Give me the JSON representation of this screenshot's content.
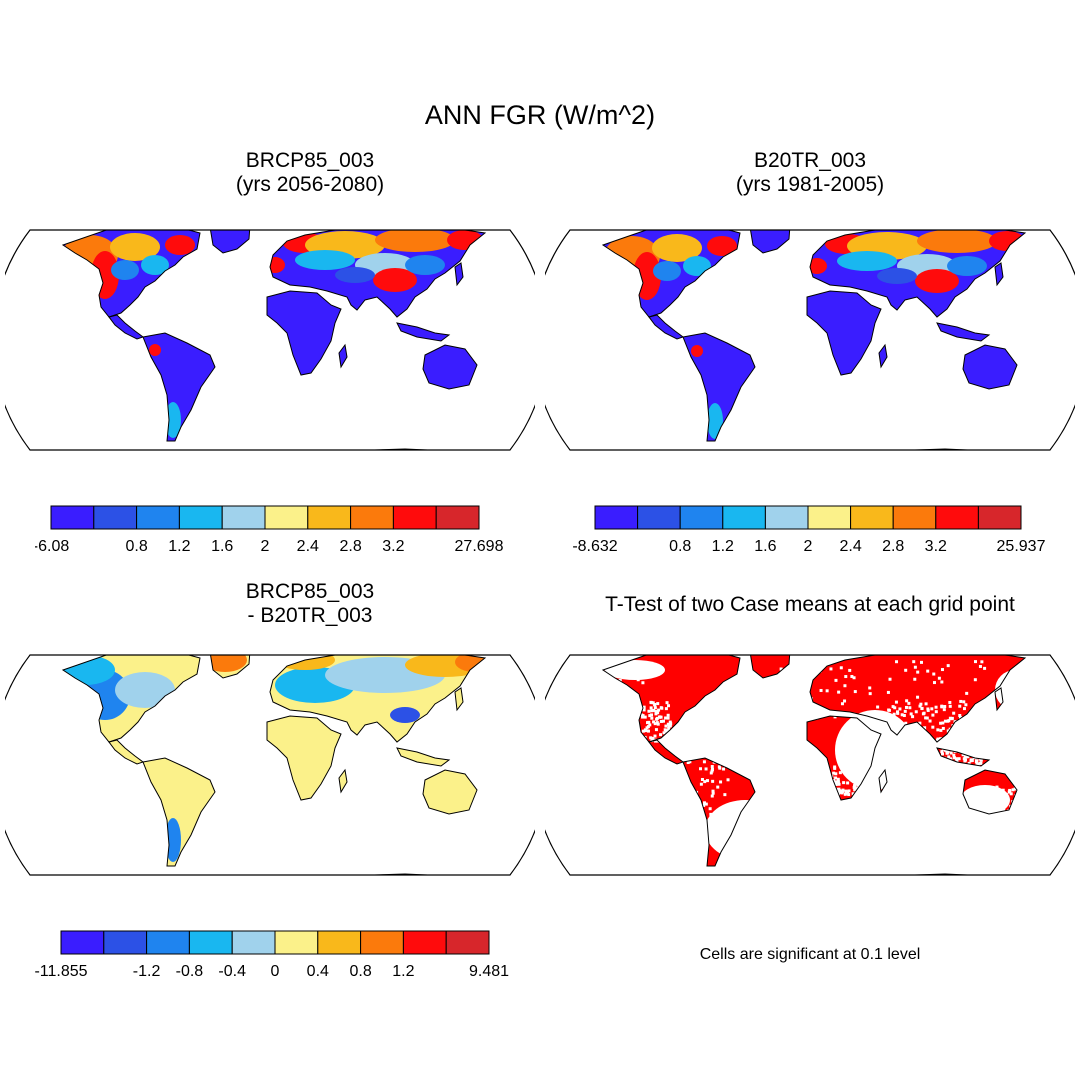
{
  "main_title": "ANN FGR (W/m^2)",
  "panels": {
    "top_left": {
      "title_line1": "BRCP85_003",
      "title_line2": "(yrs 2056-2080)"
    },
    "top_right": {
      "title_line1": "B20TR_003",
      "title_line2": "(yrs 1981-2005)"
    },
    "bottom_left": {
      "title_line1": "BRCP85_003",
      "title_line2": "- B20TR_003"
    },
    "bottom_right": {
      "title_line1": "T-Test of two Case means at each grid point"
    }
  },
  "colorbars": [
    {
      "id": "cb-top-left",
      "labels": [
        "-6.08",
        "0.8",
        "1.2",
        "1.6",
        "2",
        "2.4",
        "2.8",
        "3.2",
        "27.698"
      ]
    },
    {
      "id": "cb-top-right",
      "labels": [
        "-8.632",
        "0.8",
        "1.2",
        "1.6",
        "2",
        "2.4",
        "2.8",
        "3.2",
        "25.937"
      ]
    },
    {
      "id": "cb-bottom-left",
      "labels": [
        "-11.855",
        "-1.2",
        "-0.8",
        "-0.4",
        "0",
        "0.4",
        "0.8",
        "1.2",
        "9.481"
      ]
    }
  ],
  "colors": {
    "scale": [
      "#3a1dff",
      "#2c51e6",
      "#1f84ef",
      "#19b7f0",
      "#a0d2ec",
      "#fbf18a",
      "#f9b81b",
      "#fb7a0c",
      "#ff0b0c",
      "#d7262b"
    ],
    "ttest_significant": "#ff0000",
    "outline": "#000000"
  },
  "note": "Cells are significant at 0.1 level"
}
